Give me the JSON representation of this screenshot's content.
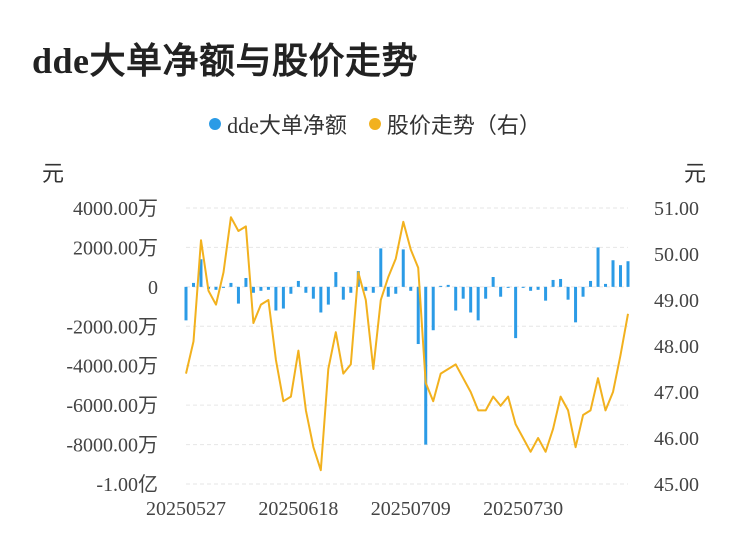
{
  "chart_data": {
    "type": "bar+line",
    "title": "dde大单净额与股价走势",
    "legend": [
      {
        "name": "dde大单净额",
        "color": "#2b9be6"
      },
      {
        "name": "股价走势（右）",
        "color": "#f2b11e"
      }
    ],
    "left_unit": "元",
    "right_unit": "元",
    "left_ticks": [
      {
        "value": 4000,
        "label": "4000.00万"
      },
      {
        "value": 2000,
        "label": "2000.00万"
      },
      {
        "value": 0,
        "label": "0"
      },
      {
        "value": -2000,
        "label": "-2000.00万"
      },
      {
        "value": -4000,
        "label": "-4000.00万"
      },
      {
        "value": -6000,
        "label": "-6000.00万"
      },
      {
        "value": -8000,
        "label": "-8000.00万"
      },
      {
        "value": -10000,
        "label": "-1.00亿"
      }
    ],
    "right_ticks": [
      {
        "value": 51,
        "label": "51.00"
      },
      {
        "value": 50,
        "label": "50.00"
      },
      {
        "value": 49,
        "label": "49.00"
      },
      {
        "value": 48,
        "label": "48.00"
      },
      {
        "value": 47,
        "label": "47.00"
      },
      {
        "value": 46,
        "label": "46.00"
      },
      {
        "value": 45,
        "label": "45.00"
      }
    ],
    "left_range": [
      -10000,
      4000
    ],
    "right_range": [
      45,
      51
    ],
    "x_tick_labels": [
      {
        "index": 0,
        "label": "20250527"
      },
      {
        "index": 15,
        "label": "20250618"
      },
      {
        "index": 30,
        "label": "20250709"
      },
      {
        "index": 45,
        "label": "20250730"
      }
    ],
    "dde_net": [
      -1700,
      200,
      1400,
      -100,
      -150,
      -50,
      200,
      -850,
      450,
      -300,
      -200,
      -150,
      -1200,
      -1100,
      -350,
      300,
      -300,
      -600,
      -1300,
      -900,
      750,
      -650,
      -300,
      800,
      -200,
      -300,
      1950,
      -500,
      -350,
      1900,
      -200,
      -2900,
      -8000,
      -2200,
      50,
      100,
      -1200,
      -600,
      -1300,
      -1700,
      -600,
      500,
      -500,
      -50,
      -2600,
      -50,
      -200,
      -150,
      -700,
      350,
      400,
      -650,
      -1800,
      -500,
      300,
      2000,
      150,
      1350,
      1100,
      1300
    ],
    "price": [
      47.4,
      48.1,
      50.3,
      49.2,
      48.9,
      49.6,
      50.8,
      50.5,
      50.6,
      48.5,
      48.9,
      49.0,
      47.7,
      46.8,
      46.9,
      47.9,
      46.6,
      45.8,
      45.3,
      47.5,
      48.3,
      47.4,
      47.6,
      49.6,
      49.0,
      47.5,
      49.0,
      49.5,
      49.9,
      50.7,
      50.1,
      49.7,
      47.2,
      46.8,
      47.4,
      47.5,
      47.6,
      47.3,
      47.0,
      46.6,
      46.6,
      46.9,
      46.7,
      46.9,
      46.3,
      46.0,
      45.7,
      46.0,
      45.7,
      46.2,
      46.9,
      46.6,
      45.8,
      46.5,
      46.6,
      47.3,
      46.6,
      47.0,
      47.8,
      48.7
    ]
  }
}
